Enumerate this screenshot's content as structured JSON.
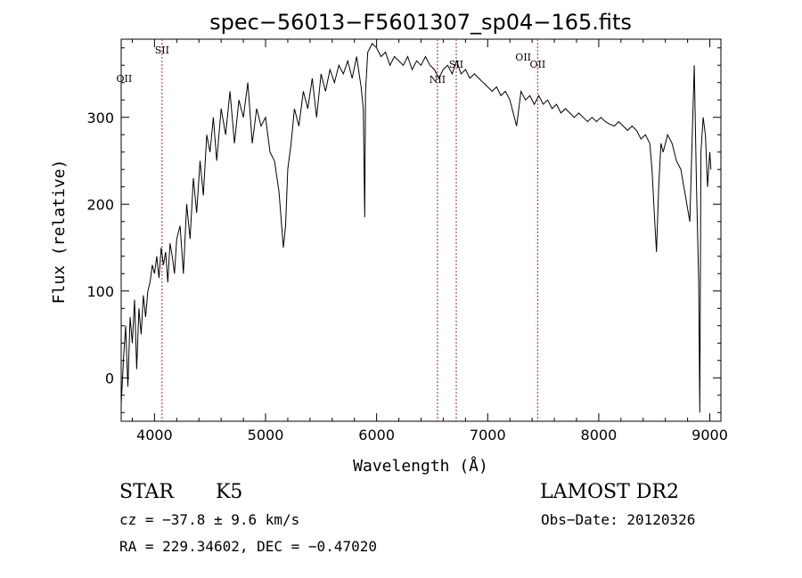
{
  "chart_data": {
    "type": "line",
    "title": "spec−56013−F5601307_sp04−165.fits",
    "xlabel": "Wavelength (Å)",
    "ylabel": "Flux (relative)",
    "xlim": [
      3700,
      9100
    ],
    "ylim": [
      -50,
      390
    ],
    "xticks": [
      4000,
      5000,
      6000,
      7000,
      8000,
      9000
    ],
    "yticks": [
      0,
      100,
      200,
      300
    ],
    "grid": false,
    "line_color": "#000000",
    "marker_color": "#b22222",
    "series": [
      {
        "x": [
          3700,
          3720,
          3740,
          3760,
          3780,
          3800,
          3820,
          3840,
          3860,
          3880,
          3900,
          3920,
          3940,
          3960,
          3980,
          4000,
          4020,
          4040,
          4060,
          4080,
          4100,
          4120,
          4140,
          4160,
          4180,
          4200,
          4230,
          4260,
          4290,
          4320,
          4350,
          4380,
          4410,
          4440,
          4470,
          4500,
          4530,
          4560,
          4600,
          4640,
          4680,
          4720,
          4760,
          4800,
          4840,
          4880,
          4920,
          4960,
          5000,
          5040,
          5080,
          5120,
          5160,
          5180,
          5200,
          5230,
          5260,
          5300,
          5340,
          5380,
          5420,
          5460,
          5500,
          5540,
          5580,
          5620,
          5660,
          5700,
          5740,
          5780,
          5820,
          5860,
          5880,
          5893,
          5900,
          5920,
          5960,
          6000,
          6040,
          6080,
          6120,
          6160,
          6200,
          6240,
          6280,
          6320,
          6360,
          6400,
          6440,
          6480,
          6520,
          6560,
          6600,
          6640,
          6680,
          6720,
          6760,
          6800,
          6840,
          6880,
          6920,
          6960,
          7000,
          7040,
          7080,
          7120,
          7160,
          7200,
          7240,
          7260,
          7300,
          7340,
          7380,
          7420,
          7460,
          7500,
          7540,
          7580,
          7620,
          7660,
          7700,
          7740,
          7780,
          7820,
          7860,
          7900,
          7940,
          7980,
          8020,
          8060,
          8100,
          8140,
          8180,
          8220,
          8260,
          8300,
          8340,
          8380,
          8420,
          8460,
          8480,
          8500,
          8520,
          8540,
          8560,
          8580,
          8620,
          8660,
          8700,
          8740,
          8780,
          8820,
          8860,
          8880,
          8900,
          8910,
          8920,
          8940,
          8960,
          8980,
          9000,
          9010
        ],
        "y": [
          -30,
          20,
          60,
          -10,
          70,
          40,
          90,
          10,
          80,
          50,
          95,
          70,
          100,
          110,
          130,
          120,
          140,
          115,
          150,
          130,
          145,
          110,
          155,
          140,
          120,
          160,
          175,
          120,
          200,
          160,
          230,
          190,
          250,
          210,
          280,
          260,
          300,
          250,
          310,
          280,
          330,
          270,
          320,
          300,
          340,
          270,
          310,
          290,
          300,
          260,
          250,
          215,
          150,
          175,
          240,
          270,
          310,
          290,
          330,
          310,
          345,
          300,
          350,
          330,
          355,
          340,
          360,
          350,
          365,
          345,
          370,
          335,
          310,
          185,
          330,
          375,
          385,
          380,
          370,
          375,
          360,
          370,
          365,
          360,
          370,
          355,
          365,
          360,
          370,
          360,
          355,
          345,
          355,
          360,
          350,
          365,
          350,
          355,
          345,
          350,
          345,
          340,
          335,
          330,
          335,
          325,
          330,
          320,
          300,
          290,
          330,
          320,
          325,
          315,
          325,
          315,
          320,
          310,
          315,
          305,
          310,
          305,
          300,
          305,
          300,
          295,
          300,
          295,
          300,
          295,
          292,
          290,
          295,
          290,
          285,
          290,
          285,
          275,
          280,
          270,
          240,
          190,
          145,
          220,
          270,
          260,
          280,
          270,
          250,
          240,
          210,
          180,
          360,
          220,
          110,
          -40,
          260,
          300,
          280,
          220,
          260,
          240
        ]
      }
    ],
    "line_markers": [
      {
        "label": "OII",
        "x": 3727,
        "show_line": false
      },
      {
        "label": "SII",
        "x": 4068,
        "show_line": true
      },
      {
        "label": "NII",
        "x": 6548,
        "show_line": true
      },
      {
        "label": "SII",
        "x": 6717,
        "show_line": true
      },
      {
        "label": "OII",
        "x": 7320,
        "show_line": false
      },
      {
        "label": "OII",
        "x": 7450,
        "show_line": true
      }
    ]
  },
  "info": {
    "object_type": "STAR",
    "subclass": "K5",
    "survey": "LAMOST DR2",
    "cz": "cz = −37.8 ± 9.6 km/s",
    "obs_date": "Obs−Date: 20120326",
    "coords": "RA = 229.34602, DEC =  −0.47020"
  }
}
